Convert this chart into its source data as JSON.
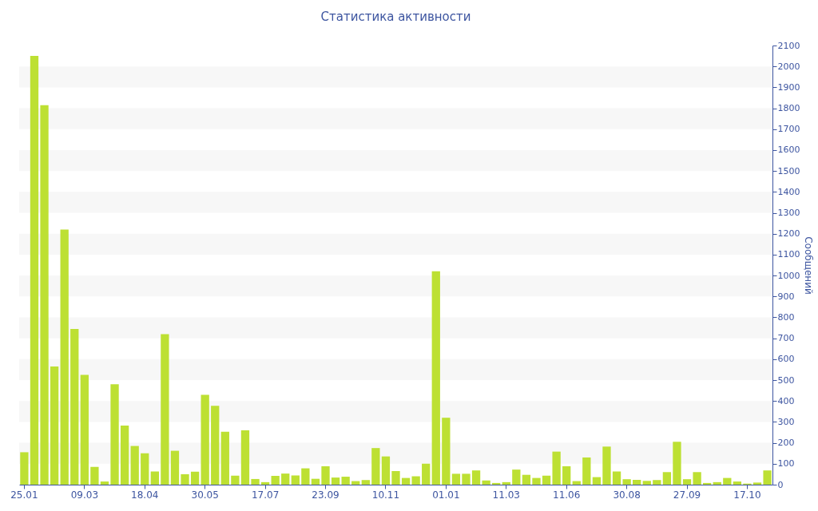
{
  "chart_data": {
    "type": "bar",
    "title": "Статистика активности",
    "ylabel": "Сообщений",
    "categories": [
      "25.01",
      null,
      null,
      null,
      null,
      null,
      "09.03",
      null,
      null,
      null,
      null,
      null,
      "18.04",
      null,
      null,
      null,
      null,
      null,
      "30.05",
      null,
      null,
      null,
      null,
      null,
      "17.07",
      null,
      null,
      null,
      null,
      null,
      "23.09",
      null,
      null,
      null,
      null,
      null,
      "10.11",
      null,
      null,
      null,
      null,
      null,
      "01.01",
      null,
      null,
      null,
      null,
      null,
      "11.03",
      null,
      null,
      null,
      null,
      null,
      "11.06",
      null,
      null,
      null,
      null,
      null,
      "30.08",
      null,
      null,
      null,
      null,
      null,
      "27.09",
      null,
      null,
      null,
      null,
      null,
      "17.10",
      null,
      null
    ],
    "values": [
      155,
      2050,
      1815,
      565,
      1220,
      745,
      525,
      85,
      15,
      480,
      283,
      185,
      150,
      63,
      720,
      162,
      50,
      62,
      430,
      377,
      253,
      43,
      260,
      27,
      12,
      42,
      53,
      44,
      78,
      28,
      88,
      34,
      38,
      17,
      22,
      175,
      135,
      65,
      32,
      40,
      100,
      1020,
      320,
      52,
      52,
      68,
      20,
      8,
      12,
      72,
      47,
      32,
      43,
      158,
      88,
      17,
      130,
      36,
      182,
      63,
      26,
      23,
      18,
      22,
      60,
      205,
      26,
      60,
      8,
      12,
      32,
      15,
      5,
      10,
      68
    ],
    "color": "#bde033",
    "ylim": [
      0,
      2100
    ],
    "yticks": [
      0,
      100,
      200,
      300,
      400,
      500,
      600,
      700,
      800,
      900,
      1000,
      1100,
      1200,
      1300,
      1400,
      1500,
      1600,
      1700,
      1800,
      1900,
      2000,
      2100
    ],
    "bands": [
      {
        "axis": "y",
        "from": 100,
        "to": 200,
        "color": "#f7f7f7"
      },
      {
        "axis": "y",
        "from": 300,
        "to": 400,
        "color": "#f7f7f7"
      },
      {
        "axis": "y",
        "from": 500,
        "to": 600,
        "color": "#f7f7f7"
      },
      {
        "axis": "y",
        "from": 700,
        "to": 800,
        "color": "#f7f7f7"
      },
      {
        "axis": "y",
        "from": 900,
        "to": 1000,
        "color": "#f7f7f7"
      },
      {
        "axis": "y",
        "from": 1100,
        "to": 1200,
        "color": "#f7f7f7"
      },
      {
        "axis": "y",
        "from": 1300,
        "to": 1400,
        "color": "#f7f7f7"
      },
      {
        "axis": "y",
        "from": 1500,
        "to": 1600,
        "color": "#f7f7f7"
      },
      {
        "axis": "y",
        "from": 1700,
        "to": 1800,
        "color": "#f7f7f7"
      },
      {
        "axis": "y",
        "from": 1900,
        "to": 2000,
        "color": "#f7f7f7"
      }
    ]
  }
}
